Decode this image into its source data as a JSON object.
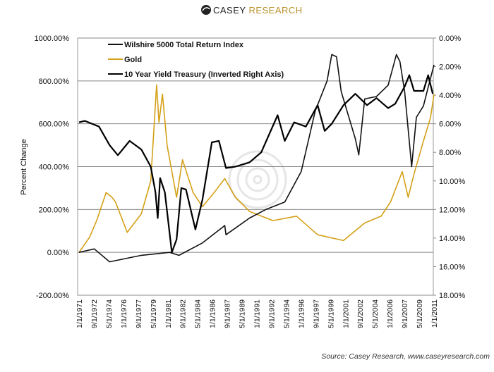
{
  "header": {
    "logo_text": "CASEY RESEARCH"
  },
  "footer": {
    "source": "Source: Casey Research, www.caseyresearch.com"
  },
  "chart_data": {
    "type": "line",
    "title": "",
    "ylabel": "Percent Change",
    "ylim": [
      -200,
      1000
    ],
    "y_ticks": [
      "1000.00%",
      "800.00%",
      "600.00%",
      "400.00%",
      "200.00%",
      "0.00%",
      "-200.00%"
    ],
    "y2lim": [
      0,
      18
    ],
    "y2_inverted": true,
    "y2_ticks": [
      "0.00%",
      "2.00%",
      "4.00%",
      "6.00%",
      "8.00%",
      "10.00%",
      "12.00%",
      "14.00%",
      "16.00%",
      "18.00%"
    ],
    "xlim": [
      1971,
      2011
    ],
    "x_ticks": [
      "1/1/1971",
      "9/1/1972",
      "5/1/1974",
      "1/1/1976",
      "9/1/1977",
      "5/1/1979",
      "1/1/1981",
      "9/1/1982",
      "5/1/1984",
      "1/1/1986",
      "9/1/1987",
      "5/1/1989",
      "1/1/1991",
      "9/1/1992",
      "5/1/1994",
      "1/1/1996",
      "9/1/1997",
      "5/1/1999",
      "1/1/2001",
      "9/1/2002",
      "5/1/2004",
      "1/1/2006",
      "9/1/2007",
      "5/1/2009",
      "1/1/2011"
    ],
    "grid": true,
    "legend_position": "top-left",
    "series": [
      {
        "name": "Wilshire 5000 Total Return Index",
        "color": "#111111",
        "axis": "left",
        "x": [
          1971.0,
          1972.72,
          1974.44,
          1978.02,
          1981.2,
          1982.26,
          1984.91,
          1987.42,
          1987.56,
          1990.21,
          1992.06,
          1994.18,
          1996.03,
          1997.62,
          1998.95,
          1999.48,
          2000.01,
          2000.54,
          2002.13,
          2002.52,
          2003.19,
          2004.51,
          2005.83,
          2006.76,
          2007.16,
          2007.69,
          2008.48,
          2009.01,
          2009.81,
          2010.34,
          2011.0
        ],
        "y": [
          0,
          16,
          -44,
          -14,
          0,
          -14,
          44,
          125,
          82,
          160,
          200,
          235,
          377,
          660,
          800,
          923,
          913,
          750,
          530,
          455,
          716,
          727,
          780,
          923,
          890,
          750,
          400,
          630,
          683,
          770,
          875
        ]
      },
      {
        "name": "Gold",
        "color": "#d4a017",
        "axis": "left",
        "x": [
          1971.0,
          1972.19,
          1972.99,
          1974.05,
          1974.71,
          1975.11,
          1976.43,
          1978.02,
          1979.08,
          1979.74,
          1980.01,
          1980.4,
          1980.93,
          1981.99,
          1982.66,
          1983.85,
          1984.91,
          1986.23,
          1987.42,
          1988.62,
          1990.21,
          1992.85,
          1995.5,
          1997.89,
          2000.8,
          2003.19,
          2005.04,
          2006.1,
          2007.42,
          2008.09,
          2008.75,
          2009.81,
          2010.6,
          2011.0
        ],
        "y": [
          0,
          71,
          148,
          279,
          257,
          235,
          93,
          180,
          333,
          781,
          606,
          738,
          497,
          257,
          432,
          279,
          213,
          279,
          344,
          257,
          191,
          148,
          169,
          82,
          55,
          137,
          169,
          235,
          377,
          257,
          366,
          519,
          628,
          738
        ]
      },
      {
        "name": "10 Year Yield Treasury (Inverted Right Axis)",
        "color": "#000000",
        "axis": "right",
        "x": [
          1971.0,
          1971.66,
          1973.25,
          1974.44,
          1975.37,
          1976.7,
          1978.02,
          1979.08,
          1979.61,
          1979.87,
          1980.14,
          1980.67,
          1981.46,
          1981.99,
          1982.52,
          1983.05,
          1984.11,
          1984.91,
          1985.97,
          1986.76,
          1987.56,
          1988.62,
          1990.21,
          1991.53,
          1993.38,
          1994.18,
          1995.24,
          1996.56,
          1997.89,
          1998.68,
          1999.48,
          2000.8,
          2002.13,
          2003.45,
          2004.51,
          2005.83,
          2006.63,
          2007.69,
          2008.22,
          2008.75,
          2009.81,
          2010.34,
          2010.86
        ],
        "y": [
          5.9,
          5.8,
          6.2,
          7.5,
          8.2,
          7.2,
          7.8,
          9.0,
          10.8,
          12.6,
          9.8,
          10.8,
          15.0,
          14.1,
          10.5,
          10.6,
          13.4,
          11.3,
          7.3,
          7.2,
          9.1,
          9.0,
          8.7,
          8.0,
          5.4,
          7.2,
          5.9,
          6.2,
          4.7,
          6.5,
          6.0,
          4.7,
          3.9,
          4.7,
          4.2,
          4.9,
          4.6,
          3.4,
          2.6,
          3.7,
          3.7,
          2.6,
          3.9
        ]
      }
    ]
  }
}
